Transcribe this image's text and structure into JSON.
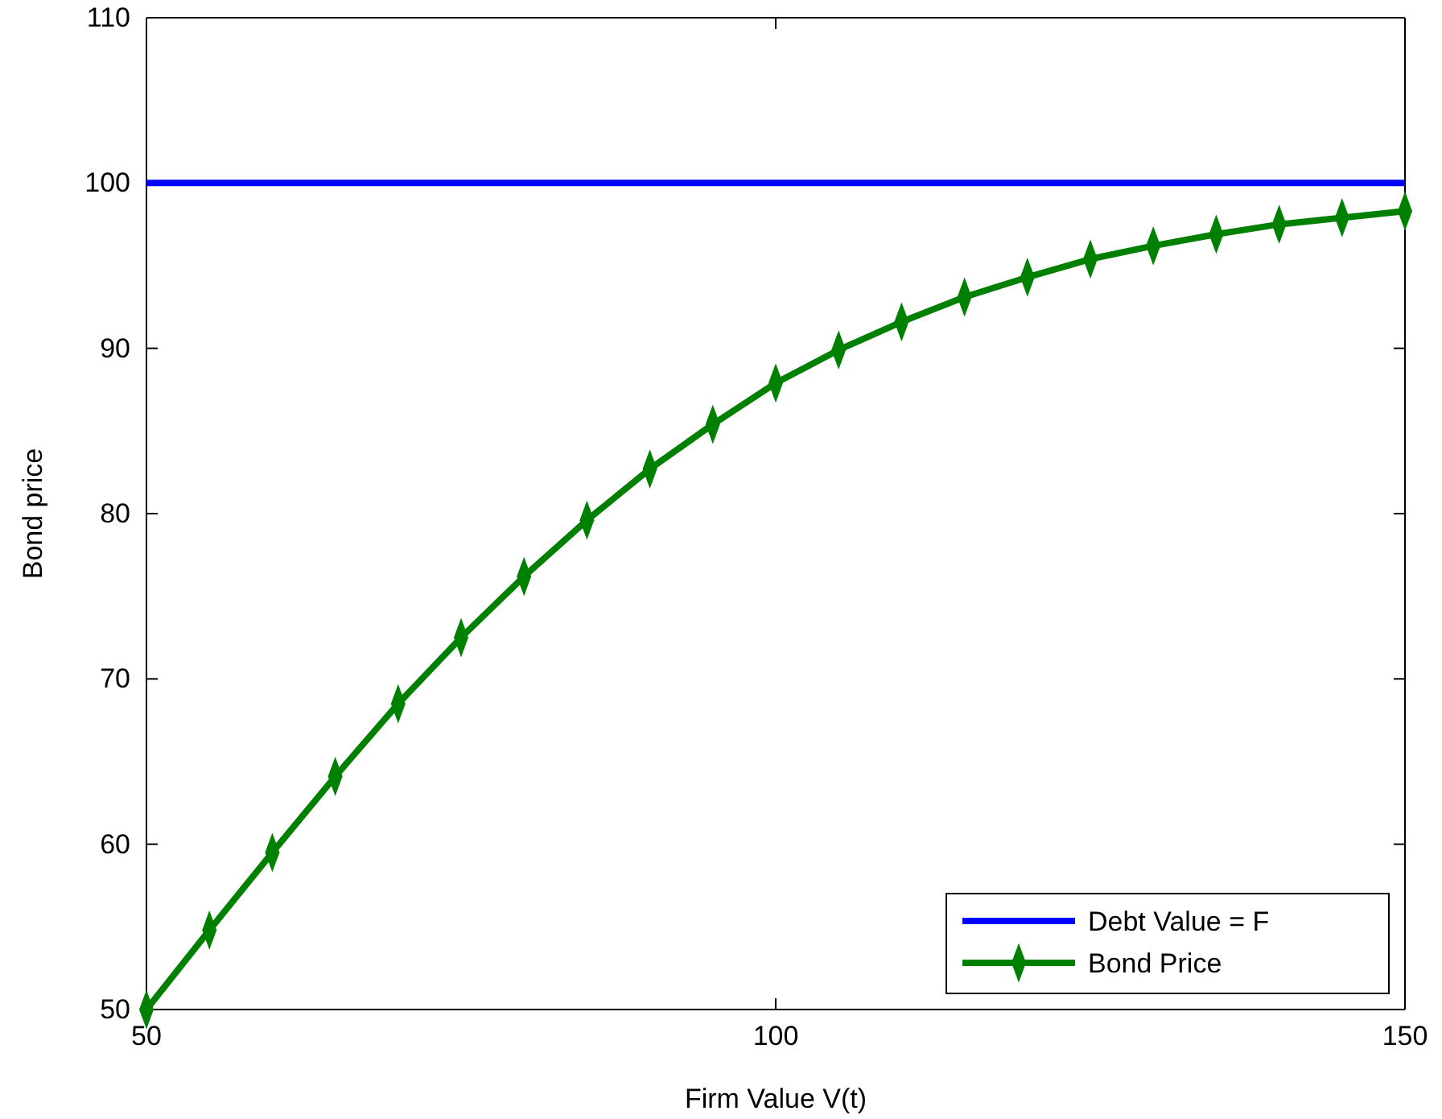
{
  "chart_data": {
    "type": "line",
    "xlabel": "Firm Value V(t)",
    "ylabel": "Bond price",
    "x": [
      50,
      55,
      60,
      65,
      70,
      75,
      80,
      85,
      90,
      95,
      100,
      105,
      110,
      115,
      120,
      125,
      130,
      135,
      140,
      145,
      150
    ],
    "series": [
      {
        "name": "Debt Value = F",
        "color": "#0000ff",
        "marker": "none",
        "values": [
          100,
          100,
          100,
          100,
          100,
          100,
          100,
          100,
          100,
          100,
          100,
          100,
          100,
          100,
          100,
          100,
          100,
          100,
          100,
          100,
          100
        ]
      },
      {
        "name": "Bond Price",
        "color": "#008000",
        "marker": "diamond",
        "values": [
          50,
          54.8,
          59.5,
          64.1,
          68.5,
          72.5,
          76.2,
          79.6,
          82.7,
          85.4,
          87.9,
          89.9,
          91.6,
          93.1,
          94.3,
          95.4,
          96.2,
          96.9,
          97.5,
          97.9,
          98.3
        ]
      }
    ],
    "xlim": [
      50,
      150
    ],
    "xticks": [
      50,
      100,
      150
    ],
    "ylim": [
      50,
      110
    ],
    "yticks": [
      50,
      60,
      70,
      80,
      90,
      100,
      110
    ],
    "grid": false,
    "legend": "bottom right",
    "line_style": "solid"
  }
}
